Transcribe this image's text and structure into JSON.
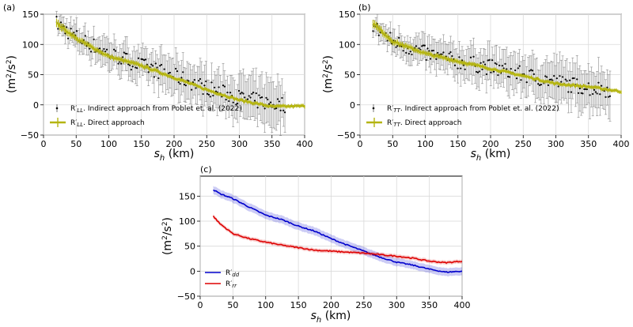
{
  "figure": {
    "panels": [
      "(a)",
      "(b)",
      "(c)"
    ]
  },
  "chart_data": [
    {
      "panel": "(a)",
      "type": "scatter",
      "xlabel": "s_h (km)",
      "ylabel": "(m²/s²)",
      "xlim": [
        0,
        400
      ],
      "ylim": [
        -50,
        150
      ],
      "xticks": [
        0,
        50,
        100,
        150,
        200,
        250,
        300,
        350,
        400
      ],
      "yticks": [
        -50,
        0,
        50,
        100,
        150
      ],
      "grid": true,
      "legend_position": "lower-left",
      "series": [
        {
          "name": "R′LL. Indirect approach from Poblet et. al. (2022)",
          "legend_main": "R′",
          "legend_sub": "LL",
          "legend_rest": ". Indirect approach from Poblet et. al. (2022)",
          "style": "black dots with grey error bars",
          "color": "#000000",
          "x": [
            20,
            50,
            100,
            150,
            200,
            250,
            300,
            350,
            370
          ],
          "y": [
            135,
            112,
            85,
            65,
            48,
            28,
            12,
            2,
            0
          ],
          "error": [
            12,
            18,
            22,
            25,
            28,
            30,
            33,
            35,
            35
          ]
        },
        {
          "name": "R′LL. Direct approach",
          "legend_main": "R′",
          "legend_sub": "LL",
          "legend_rest": ". Direct approach",
          "style": "olive line with error bars",
          "color": "#b5b512",
          "x": [
            20,
            50,
            100,
            150,
            200,
            250,
            300,
            350,
            400
          ],
          "y": [
            135,
            110,
            80,
            65,
            45,
            25,
            8,
            -3,
            -2
          ],
          "error": [
            7,
            5,
            4,
            4,
            3,
            3,
            3,
            3,
            3
          ]
        }
      ]
    },
    {
      "panel": "(b)",
      "type": "scatter",
      "xlabel": "s_h (km)",
      "ylabel": "(m²/s²)",
      "xlim": [
        0,
        400
      ],
      "ylim": [
        -50,
        150
      ],
      "xticks": [
        0,
        50,
        100,
        150,
        200,
        250,
        300,
        350,
        400
      ],
      "yticks": [
        -50,
        0,
        50,
        100,
        150
      ],
      "grid": true,
      "legend_position": "lower-left",
      "series": [
        {
          "name": "R′TT. Indirect approach from Poblet et. al. (2022)",
          "legend_main": "R′",
          "legend_sub": "TT",
          "legend_rest": ". Indirect approach from Poblet et. al. (2022)",
          "style": "black dots with grey error bars",
          "color": "#000000",
          "x": [
            20,
            50,
            100,
            150,
            200,
            250,
            300,
            350,
            385
          ],
          "y": [
            130,
            105,
            85,
            72,
            62,
            50,
            38,
            28,
            25
          ],
          "error": [
            12,
            18,
            22,
            25,
            28,
            30,
            32,
            34,
            34
          ]
        },
        {
          "name": "R′TT. Direct approach",
          "legend_main": "R′",
          "legend_sub": "TT",
          "legend_rest": ". Direct approach",
          "style": "olive line with error bars",
          "color": "#b5b512",
          "x": [
            20,
            50,
            100,
            150,
            200,
            250,
            300,
            350,
            400
          ],
          "y": [
            135,
            105,
            85,
            72,
            60,
            48,
            35,
            30,
            22
          ],
          "error": [
            7,
            5,
            4,
            4,
            3,
            3,
            3,
            3,
            3
          ]
        }
      ]
    },
    {
      "panel": "(c)",
      "type": "line",
      "xlabel": "s_h (km)",
      "ylabel": "(m²/s²)",
      "xlim": [
        0,
        400
      ],
      "ylim": [
        -50,
        190
      ],
      "xticks": [
        0,
        50,
        100,
        150,
        200,
        250,
        300,
        350,
        400
      ],
      "yticks": [
        -50,
        0,
        50,
        100,
        150
      ],
      "grid": true,
      "legend_position": "lower-left",
      "series": [
        {
          "name": "R′dd",
          "legend_main": "R′",
          "legend_sub": "dd",
          "legend_rest": "",
          "color": "#0000cc",
          "x": [
            20,
            30,
            50,
            75,
            100,
            125,
            150,
            175,
            200,
            225,
            250,
            275,
            300,
            325,
            350,
            375,
            400
          ],
          "y": [
            163,
            155,
            145,
            128,
            112,
            103,
            90,
            80,
            65,
            52,
            40,
            28,
            18,
            12,
            4,
            -2,
            0
          ],
          "band": 8
        },
        {
          "name": "R′rr",
          "legend_main": "R′",
          "legend_sub": "rr",
          "legend_rest": "",
          "color": "#dd0000",
          "x": [
            20,
            30,
            50,
            75,
            100,
            125,
            150,
            175,
            200,
            225,
            250,
            275,
            300,
            325,
            350,
            375,
            400
          ],
          "y": [
            110,
            95,
            75,
            65,
            58,
            52,
            47,
            42,
            40,
            38,
            36,
            33,
            30,
            26,
            20,
            17,
            20
          ],
          "band": 4
        }
      ]
    }
  ]
}
